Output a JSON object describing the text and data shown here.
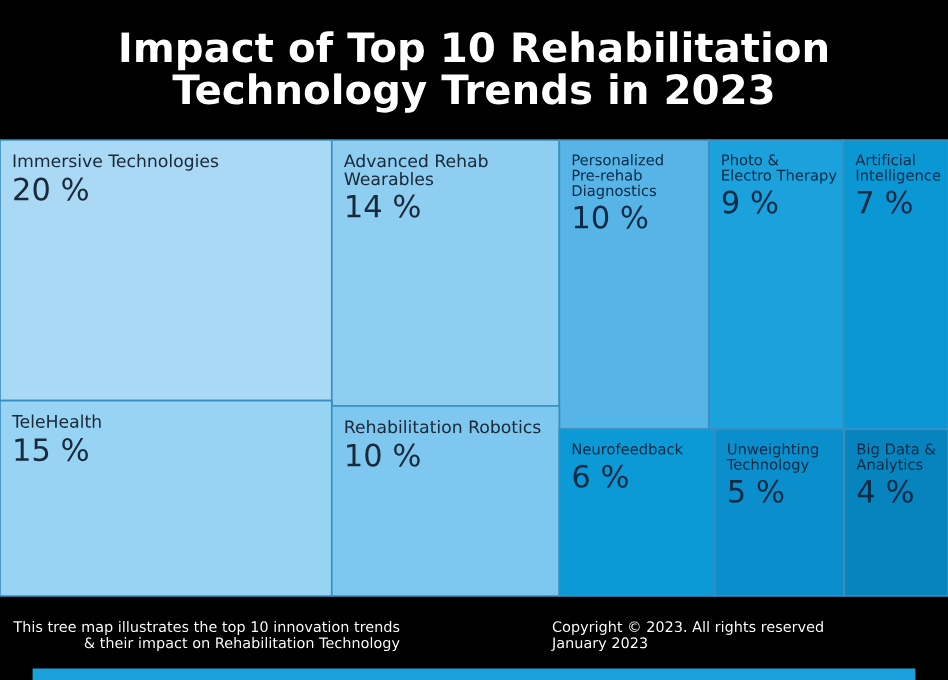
{
  "chart_data": {
    "type": "other",
    "title": "Impact of Top 10 Rehabilitation\nTechnology Trends in 2023",
    "categories": [
      "Immersive Technologies",
      "Advanced Rehab\nWearables",
      "Personalized\nPre-rehab\nDiagnostics",
      "Photo &\nElectro Therapy",
      "Artificial\nIntelligence",
      "TeleHealth",
      "Rehabilitation Robotics",
      "Neurofeedback",
      "Unweighting\nTechnology",
      "Big Data &\nAnalytics"
    ],
    "values": [
      20,
      14,
      10,
      9,
      7,
      15,
      10,
      6,
      5,
      4
    ],
    "value_labels": [
      "20 %",
      "14 %",
      "10 %",
      "9 %",
      "7 %",
      "15 %",
      "10 %",
      "6 %",
      "5 %",
      "4 %"
    ],
    "colors": [
      "#a9d9f5",
      "#8dcef1",
      "#56b5e6",
      "#1ba1dc",
      "#0b97d4",
      "#97d3f3",
      "#7ec7ef",
      "#0c9ad6",
      "#0a8fcc",
      "#0784be"
    ],
    "annotations": [
      "This tree map illustrates the top 10 innovation trends\n& their impact on Rehabilitation Technology",
      "Copyright © 2023. All rights reserved\nJanuary 2023"
    ]
  }
}
